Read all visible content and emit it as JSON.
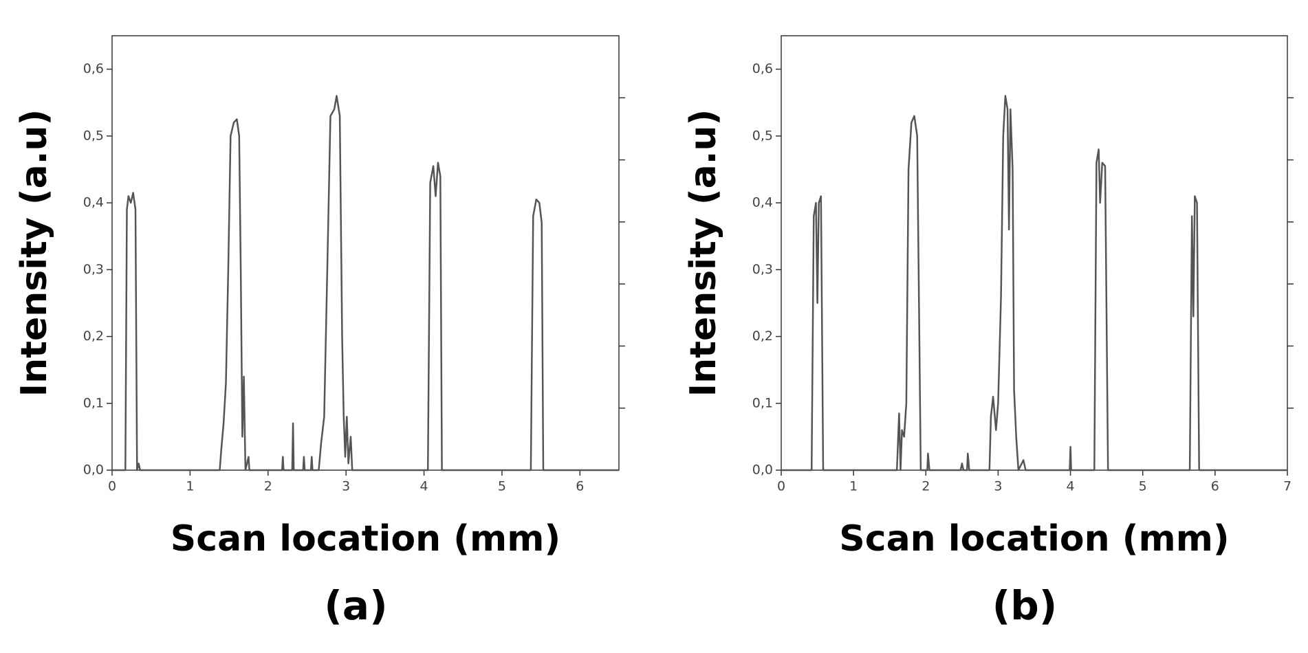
{
  "chart_data": [
    {
      "type": "line",
      "caption": "(a)",
      "ylabel": "Intensity (a.u)",
      "xlabel": "Scan location (mm)",
      "color": "#555555",
      "xlim": [
        0,
        6.5
      ],
      "ylim": [
        0,
        0.65
      ],
      "xticks": [
        0,
        1,
        2,
        3,
        4,
        5,
        6
      ],
      "yticks": [
        {
          "value": 0,
          "label": "0,0"
        },
        {
          "value": 0.1,
          "label": "0,1"
        },
        {
          "value": 0.2,
          "label": "0,2"
        },
        {
          "value": 0.3,
          "label": "0,3"
        },
        {
          "value": 0.4,
          "label": "0,4"
        },
        {
          "value": 0.5,
          "label": "0,5"
        },
        {
          "value": 0.6,
          "label": "0,6"
        }
      ],
      "x": [
        0,
        0.17,
        0.19,
        0.21,
        0.24,
        0.27,
        0.3,
        0.32,
        0.34,
        0.36,
        1.38,
        1.4,
        1.43,
        1.46,
        1.49,
        1.52,
        1.56,
        1.6,
        1.63,
        1.65,
        1.67,
        1.69,
        1.71,
        1.75,
        1.76,
        2.18,
        2.19,
        2.2,
        2.31,
        2.32,
        2.33,
        2.45,
        2.46,
        2.47,
        2.55,
        2.56,
        2.57,
        2.65,
        2.68,
        2.72,
        2.76,
        2.8,
        2.85,
        2.88,
        2.92,
        2.95,
        2.97,
        2.99,
        3.01,
        3.03,
        3.06,
        3.08,
        4.05,
        4.08,
        4.12,
        4.15,
        4.18,
        4.21,
        4.23,
        5.37,
        5.4,
        5.44,
        5.48,
        5.51,
        5.53,
        6.5
      ],
      "values": [
        0,
        0,
        0.39,
        0.41,
        0.4,
        0.415,
        0.39,
        0,
        0.01,
        0,
        0,
        0.03,
        0.07,
        0.13,
        0.3,
        0.5,
        0.52,
        0.525,
        0.5,
        0.3,
        0.05,
        0.14,
        0,
        0.02,
        0,
        0,
        0.02,
        0,
        0,
        0.07,
        0,
        0,
        0.02,
        0,
        0,
        0.02,
        0,
        0,
        0.04,
        0.08,
        0.3,
        0.53,
        0.54,
        0.56,
        0.53,
        0.2,
        0.08,
        0.02,
        0.08,
        0.01,
        0.05,
        0,
        0,
        0.43,
        0.455,
        0.41,
        0.46,
        0.44,
        0,
        0,
        0.38,
        0.405,
        0.4,
        0.37,
        0,
        0
      ]
    },
    {
      "type": "line",
      "caption": "(b)",
      "ylabel": "Intensity (a.u)",
      "xlabel": "Scan location (mm)",
      "color": "#555555",
      "xlim": [
        0,
        7
      ],
      "ylim": [
        0,
        0.65
      ],
      "xticks": [
        0,
        1,
        2,
        3,
        4,
        5,
        6,
        7
      ],
      "yticks": [
        {
          "value": 0,
          "label": "0,0"
        },
        {
          "value": 0.1,
          "label": "0,1"
        },
        {
          "value": 0.2,
          "label": "0,2"
        },
        {
          "value": 0.3,
          "label": "0,3"
        },
        {
          "value": 0.4,
          "label": "0,4"
        },
        {
          "value": 0.5,
          "label": "0,5"
        },
        {
          "value": 0.6,
          "label": "0,6"
        }
      ],
      "x": [
        0,
        0.42,
        0.45,
        0.48,
        0.5,
        0.52,
        0.55,
        0.58,
        1.6,
        1.63,
        1.65,
        1.67,
        1.7,
        1.73,
        1.76,
        1.8,
        1.84,
        1.88,
        1.9,
        1.93,
        2.02,
        2.03,
        2.05,
        2.48,
        2.5,
        2.52,
        2.57,
        2.58,
        2.6,
        2.88,
        2.9,
        2.93,
        2.97,
        3.0,
        3.04,
        3.07,
        3.1,
        3.13,
        3.15,
        3.17,
        3.2,
        3.22,
        3.25,
        3.28,
        3.35,
        3.38,
        3.99,
        4.0,
        4.01,
        4.33,
        4.36,
        4.39,
        4.41,
        4.44,
        4.48,
        4.52,
        5.65,
        5.68,
        5.7,
        5.72,
        5.75,
        5.78,
        7
      ],
      "values": [
        0,
        0,
        0.38,
        0.4,
        0.25,
        0.4,
        0.41,
        0,
        0,
        0.085,
        0,
        0.06,
        0.05,
        0.1,
        0.45,
        0.52,
        0.53,
        0.5,
        0.3,
        0,
        0,
        0.025,
        0,
        0,
        0.01,
        0,
        0,
        0.025,
        0,
        0,
        0.08,
        0.11,
        0.06,
        0.1,
        0.26,
        0.5,
        0.56,
        0.54,
        0.36,
        0.54,
        0.45,
        0.12,
        0.05,
        0,
        0.015,
        0,
        0,
        0.035,
        0,
        0,
        0.46,
        0.48,
        0.4,
        0.46,
        0.455,
        0,
        0,
        0.38,
        0.23,
        0.41,
        0.4,
        0,
        0
      ]
    }
  ]
}
